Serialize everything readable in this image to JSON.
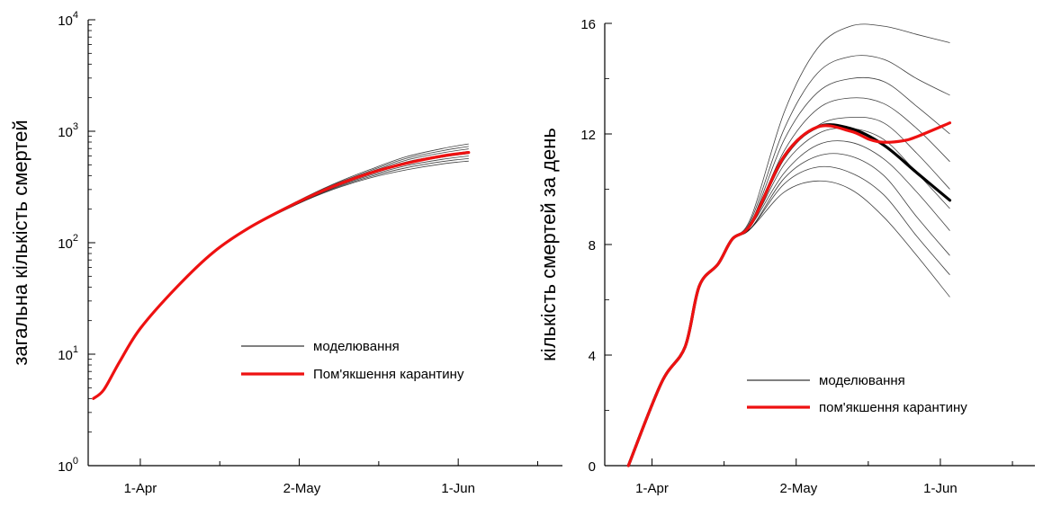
{
  "chart_data": [
    {
      "type": "line",
      "title": "",
      "xlabel": "",
      "ylabel": "загальна кількість смертей",
      "yscale": "log",
      "ylim": [
        1,
        10000
      ],
      "xlim": [
        "2020-03-22",
        "2020-06-21"
      ],
      "x_ticks": [
        {
          "date": "2020-04-01",
          "label": "1-Apr"
        },
        {
          "date": "2020-05-02",
          "label": "2-May"
        },
        {
          "date": "2020-06-01",
          "label": "1-Jun"
        }
      ],
      "y_ticks": [
        {
          "value": 1,
          "base": "10",
          "exp": "0"
        },
        {
          "value": 10,
          "base": "10",
          "exp": "1"
        },
        {
          "value": 100,
          "base": "10",
          "exp": "2"
        },
        {
          "value": 1000,
          "base": "10",
          "exp": "3"
        },
        {
          "value": 10000,
          "base": "10",
          "exp": "4"
        }
      ],
      "legend": {
        "position": "lower-right",
        "entries": [
          {
            "label": "моделювання",
            "color": "#000000"
          },
          {
            "label": "Пом'якшення карантину",
            "color": "#ee1111"
          }
        ]
      },
      "series": [
        {
          "name": "моделювання",
          "color": "#000000",
          "kind": "ensemble",
          "x": [
            "2020-03-23",
            "2020-03-25",
            "2020-03-28",
            "2020-04-01",
            "2020-04-08",
            "2020-04-15",
            "2020-04-22",
            "2020-05-01",
            "2020-05-08",
            "2020-05-15",
            "2020-05-22",
            "2020-05-29",
            "2020-06-03"
          ],
          "members": [
            [
              4.0,
              4.8,
              8.5,
              17,
              40,
              82,
              135,
              220,
              300,
              380,
              450,
              510,
              540
            ],
            [
              4.0,
              4.8,
              8.5,
              17,
              40,
              82,
              135,
              222,
              305,
              390,
              470,
              535,
              570
            ],
            [
              4.0,
              4.8,
              8.5,
              17,
              40,
              82,
              136,
              224,
              310,
              400,
              490,
              560,
              600
            ],
            [
              4.0,
              4.8,
              8.5,
              17,
              40,
              82,
              136,
              226,
              315,
              410,
              510,
              585,
              630
            ],
            [
              4.0,
              4.8,
              8.5,
              17,
              40,
              82,
              137,
              228,
              320,
              420,
              530,
              610,
              660
            ],
            [
              4.0,
              4.8,
              8.5,
              17,
              40,
              82,
              137,
              230,
              325,
              430,
              550,
              640,
              695
            ],
            [
              4.0,
              4.8,
              8.5,
              17,
              40,
              82,
              138,
              232,
              330,
              440,
              570,
              670,
              730
            ],
            [
              4.0,
              4.8,
              8.5,
              17,
              40,
              82,
              138,
              234,
              335,
              452,
              590,
              700,
              770
            ]
          ]
        },
        {
          "name": "Пом'якшення карантину",
          "color": "#ee1111",
          "kind": "highlight",
          "x": [
            "2020-03-23",
            "2020-03-25",
            "2020-03-28",
            "2020-04-01",
            "2020-04-08",
            "2020-04-15",
            "2020-04-22",
            "2020-05-01",
            "2020-05-08",
            "2020-05-15",
            "2020-05-22",
            "2020-05-29",
            "2020-06-03"
          ],
          "values": [
            4.0,
            4.8,
            8.5,
            17,
            40,
            82,
            137,
            228,
            320,
            420,
            515,
            600,
            645
          ]
        }
      ]
    },
    {
      "type": "line",
      "title": "",
      "xlabel": "",
      "ylabel": "кількість смертей за день",
      "yscale": "linear",
      "ylim": [
        0,
        16
      ],
      "xlim": [
        "2020-03-22",
        "2020-06-21"
      ],
      "x_ticks": [
        {
          "date": "2020-04-01",
          "label": "1-Apr"
        },
        {
          "date": "2020-05-02",
          "label": "2-May"
        },
        {
          "date": "2020-06-01",
          "label": "1-Jun"
        }
      ],
      "y_ticks": [
        {
          "value": 0,
          "label": "0"
        },
        {
          "value": 4,
          "label": "4"
        },
        {
          "value": 8,
          "label": "8"
        },
        {
          "value": 12,
          "label": "12"
        },
        {
          "value": 16,
          "label": "16"
        }
      ],
      "legend": {
        "position": "lower-right",
        "entries": [
          {
            "label": "моделювання",
            "color": "#000000"
          },
          {
            "label": "пом'якшення карантину",
            "color": "#ee1111"
          }
        ]
      },
      "series": [
        {
          "name": "моделювання",
          "color": "#000000",
          "kind": "ensemble",
          "x": [
            "2020-03-27",
            "2020-04-03",
            "2020-04-08",
            "2020-04-11",
            "2020-04-15",
            "2020-04-18",
            "2020-04-22",
            "2020-04-29",
            "2020-05-06",
            "2020-05-13",
            "2020-05-20",
            "2020-05-27",
            "2020-06-03"
          ],
          "members": [
            [
              0,
              3.0,
              4.3,
              6.5,
              7.3,
              8.2,
              8.6,
              9.9,
              10.3,
              10.0,
              9.0,
              7.6,
              6.1
            ],
            [
              0,
              3.0,
              4.3,
              6.5,
              7.3,
              8.2,
              8.6,
              10.2,
              10.8,
              10.6,
              9.8,
              8.3,
              6.9
            ],
            [
              0,
              3.0,
              4.3,
              6.5,
              7.3,
              8.2,
              8.6,
              10.4,
              11.2,
              11.2,
              10.5,
              9.0,
              7.6
            ],
            [
              0,
              3.0,
              4.3,
              6.5,
              7.3,
              8.2,
              8.7,
              10.6,
              11.6,
              11.7,
              11.1,
              9.9,
              8.5
            ],
            [
              0,
              3.0,
              4.3,
              6.5,
              7.3,
              8.2,
              8.7,
              10.9,
              12.0,
              12.2,
              11.8,
              10.6,
              9.3
            ],
            [
              0,
              3.0,
              4.3,
              6.5,
              7.3,
              8.2,
              8.7,
              11.1,
              12.3,
              12.6,
              12.4,
              11.3,
              10.0
            ],
            [
              0,
              3.0,
              4.3,
              6.5,
              7.3,
              8.2,
              8.8,
              11.4,
              12.9,
              13.3,
              13.1,
              12.2,
              11.0
            ],
            [
              0,
              3.0,
              4.3,
              6.5,
              7.3,
              8.2,
              8.8,
              11.8,
              13.5,
              14.0,
              13.9,
              13.0,
              12.0
            ],
            [
              0,
              3.0,
              4.3,
              6.5,
              7.3,
              8.2,
              8.9,
              12.2,
              14.2,
              14.8,
              14.7,
              14.0,
              13.4
            ],
            [
              0,
              3.0,
              4.3,
              6.5,
              7.3,
              8.2,
              9.0,
              12.8,
              15.1,
              15.9,
              15.9,
              15.6,
              15.3
            ]
          ]
        },
        {
          "name": "",
          "color": "#000000",
          "kind": "median",
          "x": [
            "2020-03-27",
            "2020-04-03",
            "2020-04-08",
            "2020-04-11",
            "2020-04-15",
            "2020-04-18",
            "2020-04-22",
            "2020-04-29",
            "2020-05-06",
            "2020-05-13",
            "2020-05-20",
            "2020-05-27",
            "2020-06-03"
          ],
          "values": [
            0,
            3.0,
            4.3,
            6.5,
            7.3,
            8.2,
            8.75,
            11.2,
            12.25,
            12.2,
            11.6,
            10.6,
            9.6
          ]
        },
        {
          "name": "пом'якшення карантину",
          "color": "#ee1111",
          "kind": "highlight",
          "x": [
            "2020-03-27",
            "2020-04-03",
            "2020-04-08",
            "2020-04-11",
            "2020-04-15",
            "2020-04-18",
            "2020-04-22",
            "2020-04-29",
            "2020-05-06",
            "2020-05-13",
            "2020-05-17",
            "2020-05-20",
            "2020-05-24",
            "2020-05-27",
            "2020-06-03"
          ],
          "values": [
            0,
            3.0,
            4.3,
            6.5,
            7.3,
            8.2,
            8.75,
            11.2,
            12.25,
            12.1,
            11.8,
            11.7,
            11.75,
            11.9,
            12.4
          ]
        }
      ]
    }
  ]
}
